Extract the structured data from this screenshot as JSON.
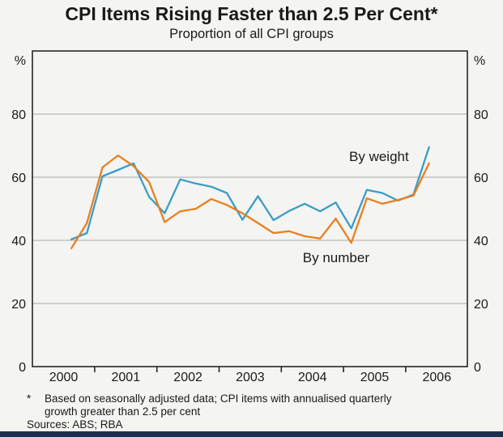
{
  "header": {
    "title": "CPI Items Rising Faster than 2.5 Per Cent*",
    "subtitle": "Proportion of all CPI groups"
  },
  "footnotes": {
    "symbol": "*",
    "note_line1": "Based on seasonally adjusted data; CPI items with annualised quarterly",
    "note_line2": "growth greater than 2.5 per cent",
    "note_full": "Based on seasonally adjusted data; CPI items with annualised quarterly growth greater than 2.5 per cent",
    "sources": "Sources: ABS; RBA"
  },
  "colors": {
    "by_weight_line": "#3a9cc9",
    "by_number_line": "#e87f1f",
    "gridline": "#a8a8a8",
    "axis_frame": "#262626",
    "background": "#f4f4f2",
    "bottom_bar": "#1d2e4e",
    "text": "#1a1a1a"
  },
  "chart_data": {
    "type": "line",
    "title": "CPI Items Rising Faster than 2.5 Per Cent*",
    "subtitle": "Proportion of all CPI groups",
    "unit_label": "%",
    "ylim": [
      0,
      100
    ],
    "yticks": [
      0,
      20,
      40,
      60,
      80
    ],
    "y_axis_sides": "both",
    "grid": "horizontal",
    "legend_position": "inline-annotations",
    "x_years": [
      2000,
      2001,
      2002,
      2003,
      2004,
      2005,
      2006
    ],
    "x_minor_ticks": [
      2000.5,
      2001.5,
      2002.5,
      2003.5,
      2004.5,
      2005.5
    ],
    "categories": [
      "2000 Q1",
      "2000 Q2",
      "2000 Q3",
      "2000 Q4",
      "2001 Q1",
      "2001 Q2",
      "2001 Q3",
      "2001 Q4",
      "2002 Q1",
      "2002 Q2",
      "2002 Q3",
      "2002 Q4",
      "2003 Q1",
      "2003 Q2",
      "2003 Q3",
      "2003 Q4",
      "2004 Q1",
      "2004 Q2",
      "2004 Q3",
      "2004 Q4",
      "2005 Q1",
      "2005 Q2",
      "2005 Q3",
      "2005 Q4"
    ],
    "series": [
      {
        "name": "By weight",
        "color": "#3a9cc9",
        "values": [
          40.3,
          42.3,
          60.3,
          62.3,
          64.4,
          53.8,
          48.6,
          59.3,
          58.0,
          57.0,
          55.0,
          46.5,
          54.0,
          46.4,
          49.3,
          51.6,
          49.2,
          52.0,
          43.8,
          56.0,
          55.0,
          52.6,
          54.5,
          69.5
        ],
        "label_pos": {
          "year": 2005.07,
          "value": 66.7
        }
      },
      {
        "name": "By number",
        "color": "#e87f1f",
        "values": [
          37.5,
          45.5,
          63.1,
          66.9,
          63.5,
          58.5,
          45.8,
          49.2,
          50.0,
          53.1,
          51.2,
          48.6,
          45.5,
          42.3,
          42.9,
          41.3,
          40.6,
          46.9,
          39.2,
          53.3,
          51.6,
          52.8,
          54.2,
          64.4
        ],
        "label_pos": {
          "year": 2004.38,
          "value": 34.6
        }
      }
    ]
  }
}
